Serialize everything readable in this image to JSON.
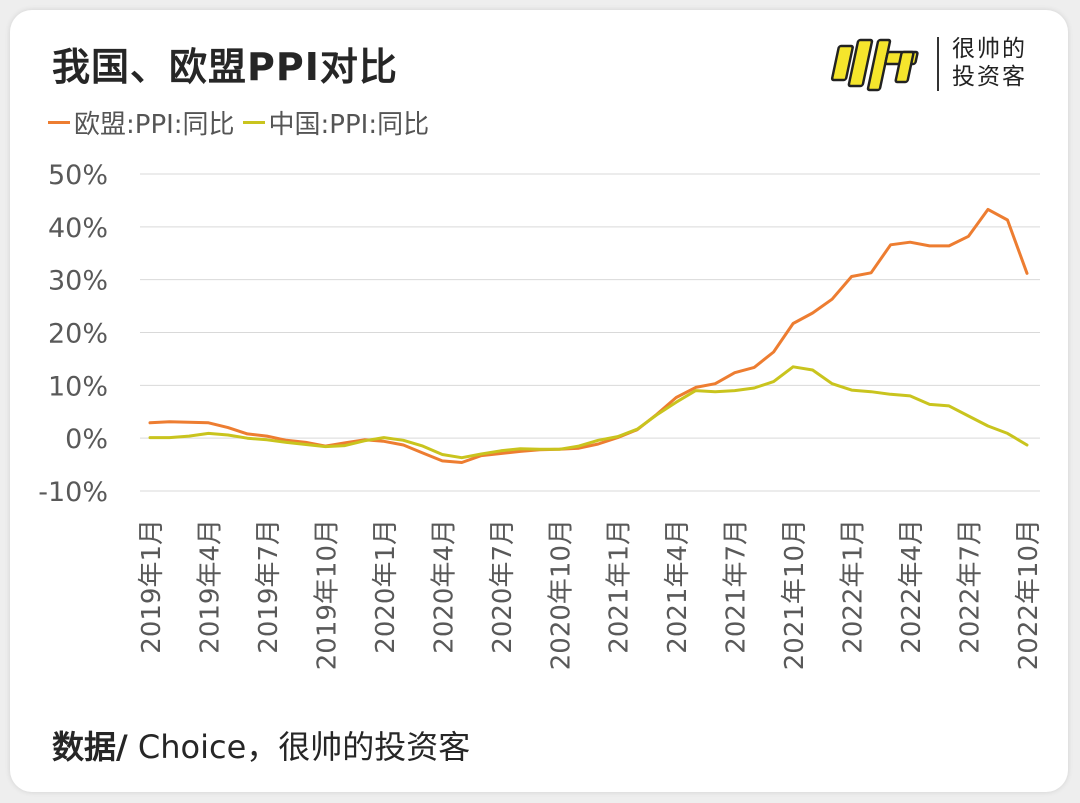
{
  "header": {
    "title": "我国、欧盟PPI对比",
    "brand_line1": "很帅的",
    "brand_line2": "投资客"
  },
  "source": {
    "label": "数据/",
    "text": " Choice，很帅的投资客"
  },
  "colors": {
    "eu": "#ED7D31",
    "cn": "#C9C41E",
    "grid": "#d9d9d9",
    "axis_text": "#595959",
    "brand_yellow": "#F5E52C"
  },
  "chart_data": {
    "type": "line",
    "title": "",
    "xlabel": "",
    "ylabel": "",
    "ylim": [
      -10,
      50
    ],
    "yticks": [
      -10,
      0,
      10,
      20,
      30,
      40,
      50
    ],
    "ytick_labels": [
      "-10%",
      "0%",
      "10%",
      "20%",
      "30%",
      "40%",
      "50%"
    ],
    "grid": true,
    "legend_position": "top-left",
    "x": [
      "2019年1月",
      "2019年2月",
      "2019年3月",
      "2019年4月",
      "2019年5月",
      "2019年6月",
      "2019年7月",
      "2019年8月",
      "2019年9月",
      "2019年10月",
      "2019年11月",
      "2019年12月",
      "2020年1月",
      "2020年2月",
      "2020年3月",
      "2020年4月",
      "2020年5月",
      "2020年6月",
      "2020年7月",
      "2020年8月",
      "2020年9月",
      "2020年10月",
      "2020年11月",
      "2020年12月",
      "2021年1月",
      "2021年2月",
      "2021年3月",
      "2021年4月",
      "2021年5月",
      "2021年6月",
      "2021年7月",
      "2021年8月",
      "2021年9月",
      "2021年10月",
      "2021年11月",
      "2021年12月",
      "2022年1月",
      "2022年2月",
      "2022年3月",
      "2022年4月",
      "2022年5月",
      "2022年6月",
      "2022年7月",
      "2022年8月",
      "2022年9月",
      "2022年10月"
    ],
    "x_tick_labels": [
      "2019年1月",
      "2019年4月",
      "2019年7月",
      "2019年10月",
      "2020年1月",
      "2020年4月",
      "2020年7月",
      "2020年10月",
      "2021年1月",
      "2021年4月",
      "2021年7月",
      "2021年10月",
      "2022年1月",
      "2022年4月",
      "2022年7月",
      "2022年10月"
    ],
    "series": [
      {
        "name": "欧盟:PPI:同比",
        "color_key": "eu",
        "values": [
          2.9,
          3.1,
          3.0,
          2.9,
          2.0,
          0.8,
          0.4,
          -0.4,
          -0.8,
          -1.5,
          -0.9,
          -0.3,
          -0.6,
          -1.3,
          -2.8,
          -4.3,
          -4.6,
          -3.3,
          -2.9,
          -2.5,
          -2.2,
          -2.1,
          -1.9,
          -1.1,
          0.1,
          1.6,
          4.5,
          7.7,
          9.6,
          10.3,
          12.4,
          13.4,
          16.3,
          21.7,
          23.7,
          26.3,
          30.6,
          31.3,
          36.6,
          37.1,
          36.4,
          36.4,
          38.2,
          43.3,
          41.3,
          31.2
        ]
      },
      {
        "name": "中国:PPI:同比",
        "color_key": "cn",
        "values": [
          0.1,
          0.1,
          0.4,
          0.9,
          0.6,
          0.0,
          -0.3,
          -0.8,
          -1.2,
          -1.6,
          -1.4,
          -0.5,
          0.1,
          -0.4,
          -1.5,
          -3.1,
          -3.7,
          -3.0,
          -2.4,
          -2.0,
          -2.1,
          -2.1,
          -1.5,
          -0.4,
          0.3,
          1.7,
          4.4,
          6.8,
          9.0,
          8.8,
          9.0,
          9.5,
          10.7,
          13.5,
          12.9,
          10.3,
          9.1,
          8.8,
          8.3,
          8.0,
          6.4,
          6.1,
          4.2,
          2.3,
          0.9,
          -1.3
        ]
      }
    ]
  }
}
